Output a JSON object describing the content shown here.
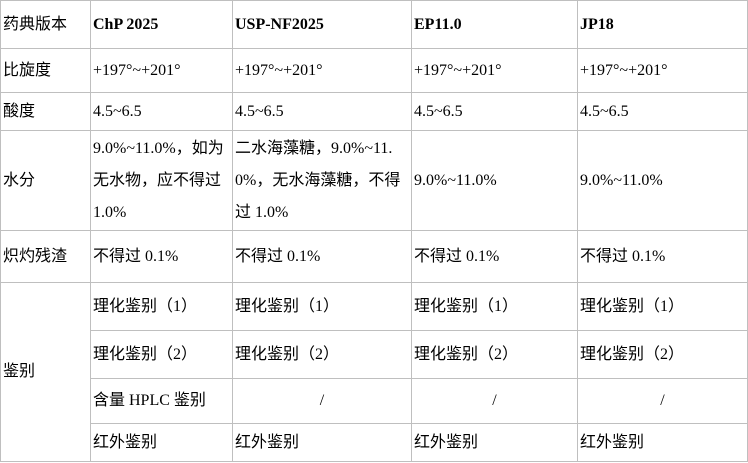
{
  "table": {
    "header": [
      "药典版本",
      "ChP 2025",
      "USP-NF2025",
      "EP11.0",
      "JP18"
    ],
    "rows": [
      [
        "比旋度",
        "+197°~+201°",
        "+197°~+201°",
        "+197°~+201°",
        "+197°~+201°"
      ],
      [
        "酸度",
        "4.5~6.5",
        "4.5~6.5",
        "4.5~6.5",
        "4.5~6.5"
      ],
      [
        "水分",
        "9.0%~11.0%，如为无水物，应不得过 1.0%",
        "二水海藻糖，9.0%~11.0%，无水海藻糖，不得过 1.0%",
        "9.0%~11.0%",
        "9.0%~11.0%"
      ],
      [
        "炽灼残渣",
        "不得过 0.1%",
        "不得过 0.1%",
        "不得过 0.1%",
        "不得过 0.1%"
      ]
    ],
    "group": {
      "label": "鉴别",
      "rows": [
        [
          "理化鉴别（1）",
          "理化鉴别（1）",
          "理化鉴别（1）",
          "理化鉴别（1）"
        ],
        [
          "理化鉴别（2）",
          "理化鉴别（2）",
          "理化鉴别（2）",
          "理化鉴别（2）"
        ],
        [
          "含量 HPLC 鉴别",
          "/",
          "/",
          "/"
        ],
        [
          "红外鉴别",
          "红外鉴别",
          "红外鉴别",
          "红外鉴别"
        ]
      ]
    }
  }
}
